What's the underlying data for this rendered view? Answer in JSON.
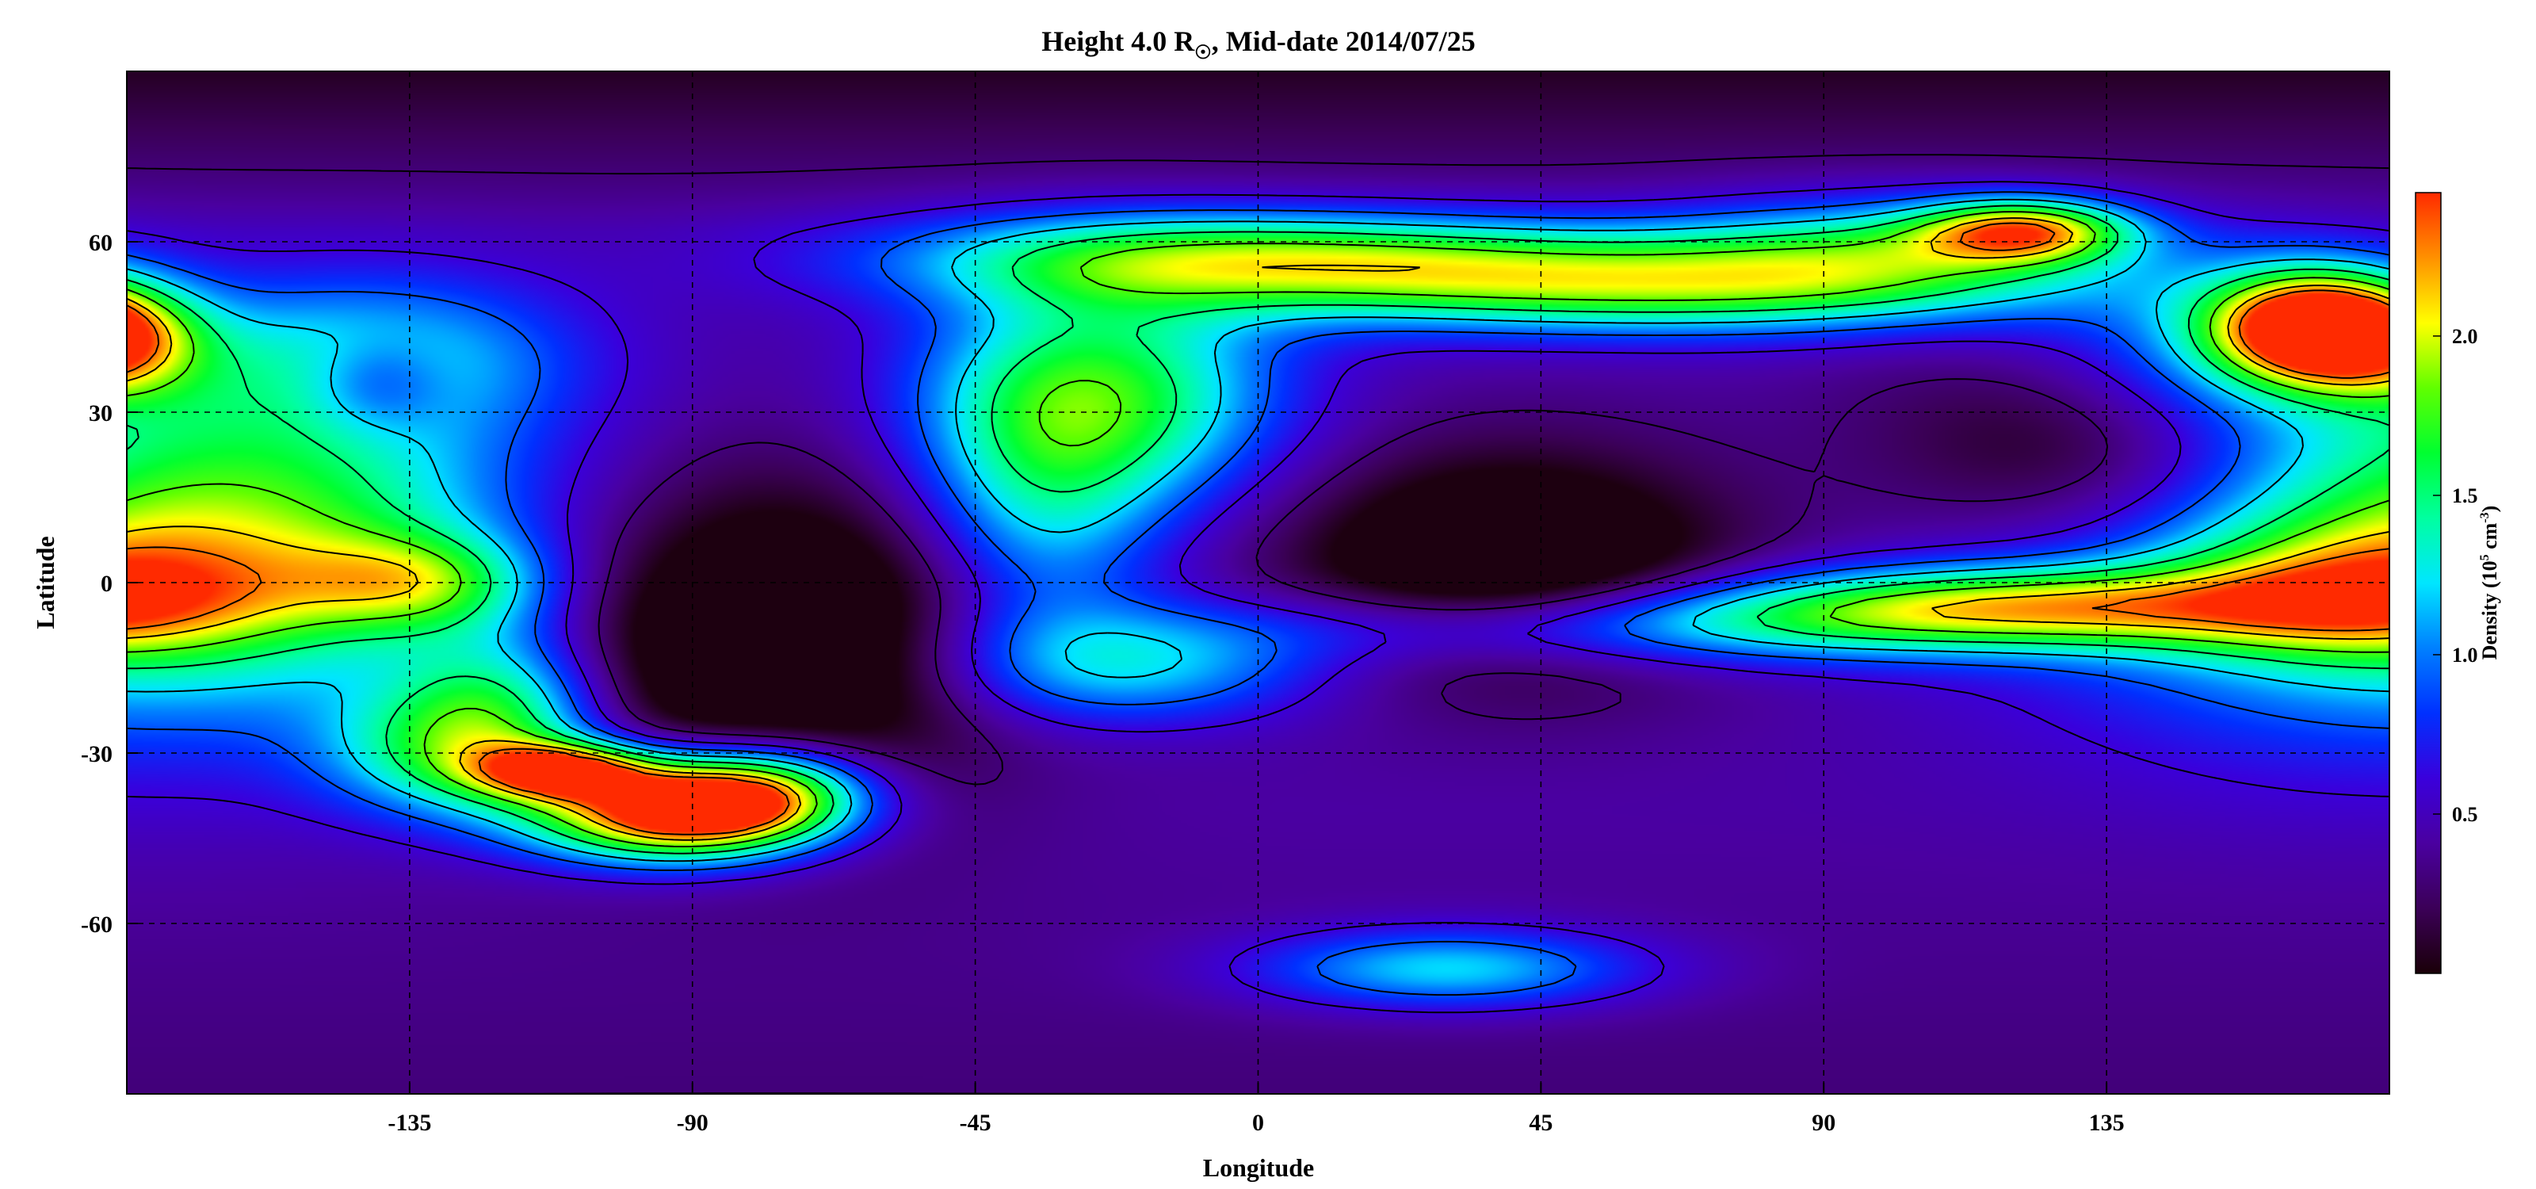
{
  "chart_data": {
    "type": "heatmap",
    "title_main": "Height 4.0 R",
    "title_sub": "☉",
    "title_rest": ", Mid-date 2014/07/25",
    "xlabel": "Longitude",
    "ylabel": "Latitude",
    "xlim": [
      -180,
      180
    ],
    "ylim": [
      -90,
      90
    ],
    "xticks": [
      -135,
      -90,
      -45,
      0,
      45,
      90,
      135
    ],
    "yticks": [
      -60,
      -30,
      0,
      30,
      60
    ],
    "grid": true,
    "colorbar": {
      "label_pre": "Density (10",
      "label_exp1": "5",
      "label_mid": " cm",
      "label_exp2": "-3",
      "label_post": ")",
      "range": [
        0,
        2.45
      ],
      "ticks": [
        0.5,
        1.0,
        1.5,
        2.0
      ],
      "tick_labels": [
        "0.5",
        "1.0",
        "1.5",
        "2.0"
      ],
      "colors": [
        "#1a0008",
        "#3b0057",
        "#4a00a0",
        "#3a00dc",
        "#0030ff",
        "#0080ff",
        "#00e6ff",
        "#00ffa0",
        "#00ff30",
        "#60ff00",
        "#ffff00",
        "#ff9000",
        "#ff2a00"
      ]
    },
    "features": [
      {
        "region": "south red core",
        "lon": -90,
        "lat": -38,
        "density": 2.45
      },
      {
        "region": "south red extension",
        "lon": -110,
        "lat": -33,
        "density": 2.4
      },
      {
        "region": "east red core",
        "lon": 168,
        "lat": 45,
        "density": 2.4
      },
      {
        "region": "equator yellow",
        "lon": -133,
        "lat": 0,
        "density": 1.95
      },
      {
        "region": "northeast yellow",
        "lon": 122,
        "lat": 62,
        "density": 1.9
      },
      {
        "region": "west yellow",
        "lon": -180,
        "lat": 42,
        "density": 1.95
      },
      {
        "region": "north green band",
        "lon": 20,
        "lat": 56,
        "density": 1.55
      },
      {
        "region": "north green",
        "lon": -25,
        "lat": 33,
        "density": 1.5
      },
      {
        "region": "equatorial green",
        "lon": 120,
        "lat": -4,
        "density": 1.45
      },
      {
        "region": "dark cell",
        "lon": 40,
        "lat": 3,
        "density": 0.35
      },
      {
        "region": "dark cell",
        "lon": -78,
        "lat": -10,
        "density": 0.35
      },
      {
        "region": "dark cell",
        "lon": 135,
        "lat": 25,
        "density": 0.4
      },
      {
        "region": "polar north",
        "lon": 0,
        "lat": 80,
        "density": 0.1
      },
      {
        "region": "south blue blob",
        "lon": 30,
        "lat": -68,
        "density": 0.95
      }
    ]
  }
}
